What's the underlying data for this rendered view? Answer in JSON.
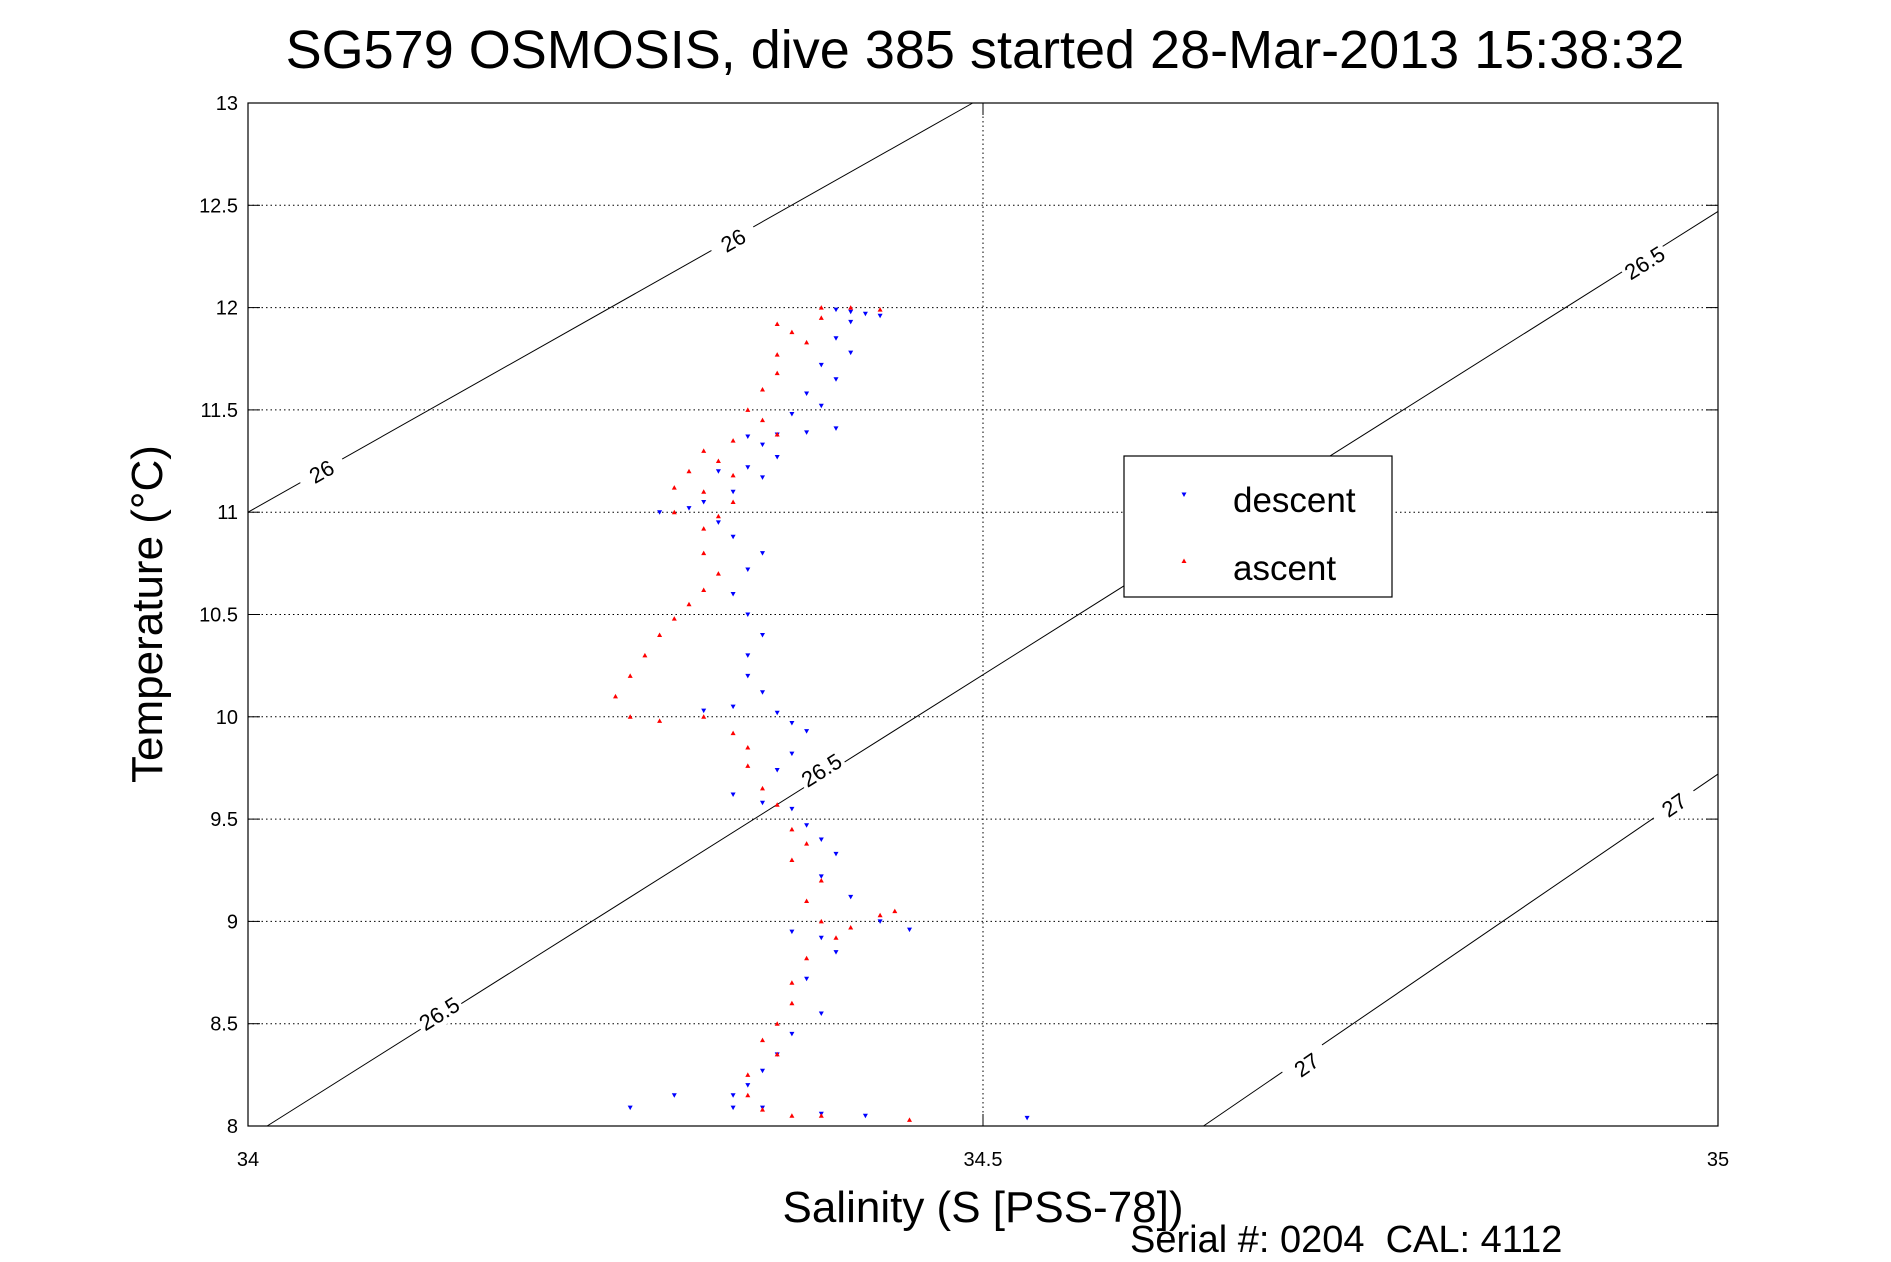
{
  "chart_data": {
    "type": "scatter",
    "title": "SG579 OSMOSIS, dive 385 started 28-Mar-2013 15:38:32",
    "xlabel": "Salinity (S [PSS-78])",
    "ylabel": "Temperature (°C)",
    "xlim": [
      34,
      35
    ],
    "ylim": [
      8,
      13
    ],
    "xticks": [
      "34",
      "34.5",
      "35"
    ],
    "yticks": [
      "8",
      "8.5",
      "9",
      "9.5",
      "10",
      "10.5",
      "11",
      "11.5",
      "12",
      "12.5",
      "13"
    ],
    "grid": true,
    "legend_position": "right",
    "footer": "Serial #: 0204  CAL: 4112",
    "density_contours": [
      {
        "label": "26",
        "points": [
          [
            34.0,
            11.0
          ],
          [
            34.493,
            13.0
          ]
        ],
        "label_positions": [
          [
            34.05,
            11.2
          ],
          [
            34.33,
            12.33
          ]
        ]
      },
      {
        "label": "26.5",
        "points": [
          [
            34.013,
            8.0
          ],
          [
            35.0,
            12.47
          ]
        ],
        "label_positions": [
          [
            34.13,
            8.55
          ],
          [
            34.39,
            9.74
          ],
          [
            34.95,
            12.22
          ]
        ]
      },
      {
        "label": "27",
        "points": [
          [
            34.65,
            8.0
          ],
          [
            35.0,
            9.72
          ]
        ],
        "label_positions": [
          [
            34.72,
            8.3
          ],
          [
            34.97,
            9.57
          ]
        ]
      }
    ],
    "series": [
      {
        "name": "descent",
        "color": "#0000ff",
        "marker": "triangle-down",
        "points": [
          [
            34.4,
            11.99
          ],
          [
            34.41,
            11.98
          ],
          [
            34.42,
            11.97
          ],
          [
            34.43,
            11.96
          ],
          [
            34.41,
            11.93
          ],
          [
            34.4,
            11.85
          ],
          [
            34.41,
            11.78
          ],
          [
            34.39,
            11.72
          ],
          [
            34.4,
            11.65
          ],
          [
            34.38,
            11.58
          ],
          [
            34.39,
            11.52
          ],
          [
            34.37,
            11.48
          ],
          [
            34.4,
            11.41
          ],
          [
            34.38,
            11.39
          ],
          [
            34.36,
            11.38
          ],
          [
            34.34,
            11.37
          ],
          [
            34.35,
            11.33
          ],
          [
            34.36,
            11.27
          ],
          [
            34.34,
            11.22
          ],
          [
            34.32,
            11.2
          ],
          [
            34.35,
            11.17
          ],
          [
            34.33,
            11.1
          ],
          [
            34.31,
            11.05
          ],
          [
            34.3,
            11.02
          ],
          [
            34.28,
            11.0
          ],
          [
            34.32,
            10.95
          ],
          [
            34.33,
            10.88
          ],
          [
            34.35,
            10.8
          ],
          [
            34.34,
            10.72
          ],
          [
            34.33,
            10.6
          ],
          [
            34.34,
            10.5
          ],
          [
            34.35,
            10.4
          ],
          [
            34.34,
            10.3
          ],
          [
            34.34,
            10.2
          ],
          [
            34.35,
            10.12
          ],
          [
            34.33,
            10.05
          ],
          [
            34.31,
            10.03
          ],
          [
            34.36,
            10.02
          ],
          [
            34.37,
            9.97
          ],
          [
            34.38,
            9.93
          ],
          [
            34.37,
            9.82
          ],
          [
            34.36,
            9.74
          ],
          [
            34.33,
            9.62
          ],
          [
            34.35,
            9.58
          ],
          [
            34.37,
            9.55
          ],
          [
            34.38,
            9.47
          ],
          [
            34.39,
            9.4
          ],
          [
            34.4,
            9.33
          ],
          [
            34.39,
            9.22
          ],
          [
            34.41,
            9.12
          ],
          [
            34.43,
            9.0
          ],
          [
            34.45,
            8.96
          ],
          [
            34.39,
            8.92
          ],
          [
            34.37,
            8.95
          ],
          [
            34.4,
            8.85
          ],
          [
            34.38,
            8.72
          ],
          [
            34.39,
            8.55
          ],
          [
            34.37,
            8.45
          ],
          [
            34.36,
            8.35
          ],
          [
            34.35,
            8.27
          ],
          [
            34.34,
            8.2
          ],
          [
            34.33,
            8.15
          ],
          [
            34.29,
            8.15
          ],
          [
            34.33,
            8.09
          ],
          [
            34.35,
            8.09
          ],
          [
            34.26,
            8.09
          ],
          [
            34.39,
            8.06
          ],
          [
            34.42,
            8.05
          ],
          [
            34.53,
            8.04
          ]
        ]
      },
      {
        "name": "ascent",
        "color": "#ff0000",
        "marker": "triangle-up",
        "points": [
          [
            34.39,
            12.0
          ],
          [
            34.41,
            12.0
          ],
          [
            34.43,
            11.99
          ],
          [
            34.39,
            11.95
          ],
          [
            34.36,
            11.92
          ],
          [
            34.37,
            11.88
          ],
          [
            34.38,
            11.83
          ],
          [
            34.36,
            11.77
          ],
          [
            34.36,
            11.68
          ],
          [
            34.35,
            11.6
          ],
          [
            34.34,
            11.5
          ],
          [
            34.35,
            11.45
          ],
          [
            34.36,
            11.38
          ],
          [
            34.33,
            11.35
          ],
          [
            34.31,
            11.3
          ],
          [
            34.32,
            11.25
          ],
          [
            34.3,
            11.2
          ],
          [
            34.33,
            11.18
          ],
          [
            34.29,
            11.12
          ],
          [
            34.31,
            11.1
          ],
          [
            34.33,
            11.05
          ],
          [
            34.29,
            11.0
          ],
          [
            34.32,
            10.98
          ],
          [
            34.31,
            10.92
          ],
          [
            34.31,
            10.8
          ],
          [
            34.32,
            10.7
          ],
          [
            34.31,
            10.62
          ],
          [
            34.3,
            10.55
          ],
          [
            34.29,
            10.48
          ],
          [
            34.28,
            10.4
          ],
          [
            34.27,
            10.3
          ],
          [
            34.26,
            10.2
          ],
          [
            34.25,
            10.1
          ],
          [
            34.26,
            10.0
          ],
          [
            34.28,
            9.98
          ],
          [
            34.31,
            10.0
          ],
          [
            34.33,
            9.92
          ],
          [
            34.34,
            9.85
          ],
          [
            34.34,
            9.76
          ],
          [
            34.35,
            9.65
          ],
          [
            34.36,
            9.57
          ],
          [
            34.37,
            9.45
          ],
          [
            34.38,
            9.38
          ],
          [
            34.37,
            9.3
          ],
          [
            34.39,
            9.2
          ],
          [
            34.38,
            9.1
          ],
          [
            34.39,
            9.0
          ],
          [
            34.41,
            8.97
          ],
          [
            34.43,
            9.03
          ],
          [
            34.44,
            9.05
          ],
          [
            34.4,
            8.92
          ],
          [
            34.38,
            8.82
          ],
          [
            34.37,
            8.7
          ],
          [
            34.37,
            8.6
          ],
          [
            34.36,
            8.5
          ],
          [
            34.35,
            8.42
          ],
          [
            34.36,
            8.35
          ],
          [
            34.34,
            8.25
          ],
          [
            34.34,
            8.15
          ],
          [
            34.35,
            8.08
          ],
          [
            34.37,
            8.05
          ],
          [
            34.39,
            8.05
          ],
          [
            34.45,
            8.03
          ]
        ]
      }
    ]
  }
}
